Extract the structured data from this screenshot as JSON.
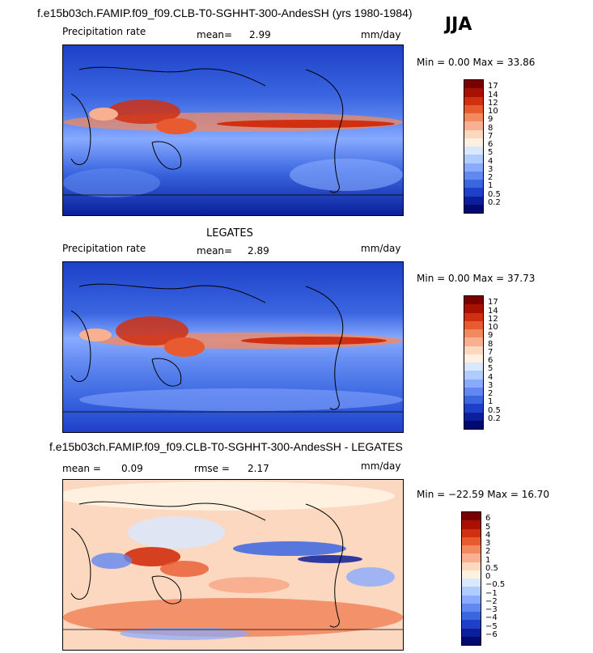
{
  "header": {
    "title": "f.e15b03ch.FAMIP.f09_f09.CLB-T0-SGHHT-300-AndesSH (yrs 1980-1984)",
    "season": "JJA"
  },
  "panels": [
    {
      "field": "Precipitation rate",
      "stat1_label": "mean=",
      "stat1_value": "2.99",
      "units": "mm/day",
      "minmax": "Min =    0.00 Max =  33.86",
      "colorbar_labels": [
        "17",
        "14",
        "12",
        "10",
        "9",
        "8",
        "7",
        "6",
        "5",
        "4",
        "3",
        "2",
        "1",
        "0.5",
        "0.2"
      ],
      "colors": [
        "#7a0000",
        "#a81000",
        "#d03010",
        "#e85a30",
        "#f28a60",
        "#f8b090",
        "#fcd8c0",
        "#fff0e0",
        "#d8e8ff",
        "#b0ccff",
        "#88aaff",
        "#6088f0",
        "#3a66e0",
        "#1e40c8",
        "#0a1f9a",
        "#000a70"
      ]
    },
    {
      "heading": "LEGATES",
      "field": "Precipitation rate",
      "stat1_label": "mean=",
      "stat1_value": "2.89",
      "units": "mm/day",
      "minmax": "Min =    0.00 Max =  37.73",
      "colorbar_labels": [
        "17",
        "14",
        "12",
        "10",
        "9",
        "8",
        "7",
        "6",
        "5",
        "4",
        "3",
        "2",
        "1",
        "0.5",
        "0.2"
      ],
      "colors": [
        "#7a0000",
        "#a81000",
        "#d03010",
        "#e85a30",
        "#f28a60",
        "#f8b090",
        "#fcd8c0",
        "#fff0e0",
        "#d8e8ff",
        "#b0ccff",
        "#88aaff",
        "#6088f0",
        "#3a66e0",
        "#1e40c8",
        "#0a1f9a",
        "#000a70"
      ]
    },
    {
      "heading": "f.e15b03ch.FAMIP.f09_f09.CLB-T0-SGHHT-300-AndesSH - LEGATES",
      "stat1_label": "mean =",
      "stat1_value": "0.09",
      "stat2_label": "rmse =",
      "stat2_value": "2.17",
      "units": "mm/day",
      "minmax": "Min = −22.59 Max =  16.70",
      "colorbar_labels": [
        "6",
        "5",
        "4",
        "3",
        "2",
        "1",
        "0.5",
        "0",
        "−0.5",
        "−1",
        "−2",
        "−3",
        "−4",
        "−5",
        "−6"
      ],
      "colors": [
        "#7a0000",
        "#a81000",
        "#d03010",
        "#e85a30",
        "#f28a60",
        "#f8b090",
        "#fcd8c0",
        "#fff0e0",
        "#d8e8ff",
        "#b0ccff",
        "#88aaff",
        "#6088f0",
        "#3a66e0",
        "#1e40c8",
        "#0a1f9a",
        "#000a70"
      ]
    }
  ],
  "chart_data": [
    {
      "type": "heatmap",
      "title": "Precipitation rate",
      "units": "mm/day",
      "mean": 2.99,
      "min": 0.0,
      "max": 33.86,
      "levels": [
        0.2,
        0.5,
        1,
        2,
        3,
        4,
        5,
        6,
        7,
        8,
        9,
        10,
        12,
        14,
        17
      ]
    },
    {
      "type": "heatmap",
      "title": "LEGATES",
      "units": "mm/day",
      "mean": 2.89,
      "min": 0.0,
      "max": 37.73,
      "levels": [
        0.2,
        0.5,
        1,
        2,
        3,
        4,
        5,
        6,
        7,
        8,
        9,
        10,
        12,
        14,
        17
      ]
    },
    {
      "type": "heatmap",
      "title": "f.e15b03ch.FAMIP.f09_f09.CLB-T0-SGHHT-300-AndesSH - LEGATES",
      "units": "mm/day",
      "mean": 0.09,
      "rmse": 2.17,
      "min": -22.59,
      "max": 16.7,
      "levels": [
        -6,
        -5,
        -4,
        -3,
        -2,
        -1,
        -0.5,
        0,
        0.5,
        1,
        2,
        3,
        4,
        5,
        6
      ]
    }
  ]
}
